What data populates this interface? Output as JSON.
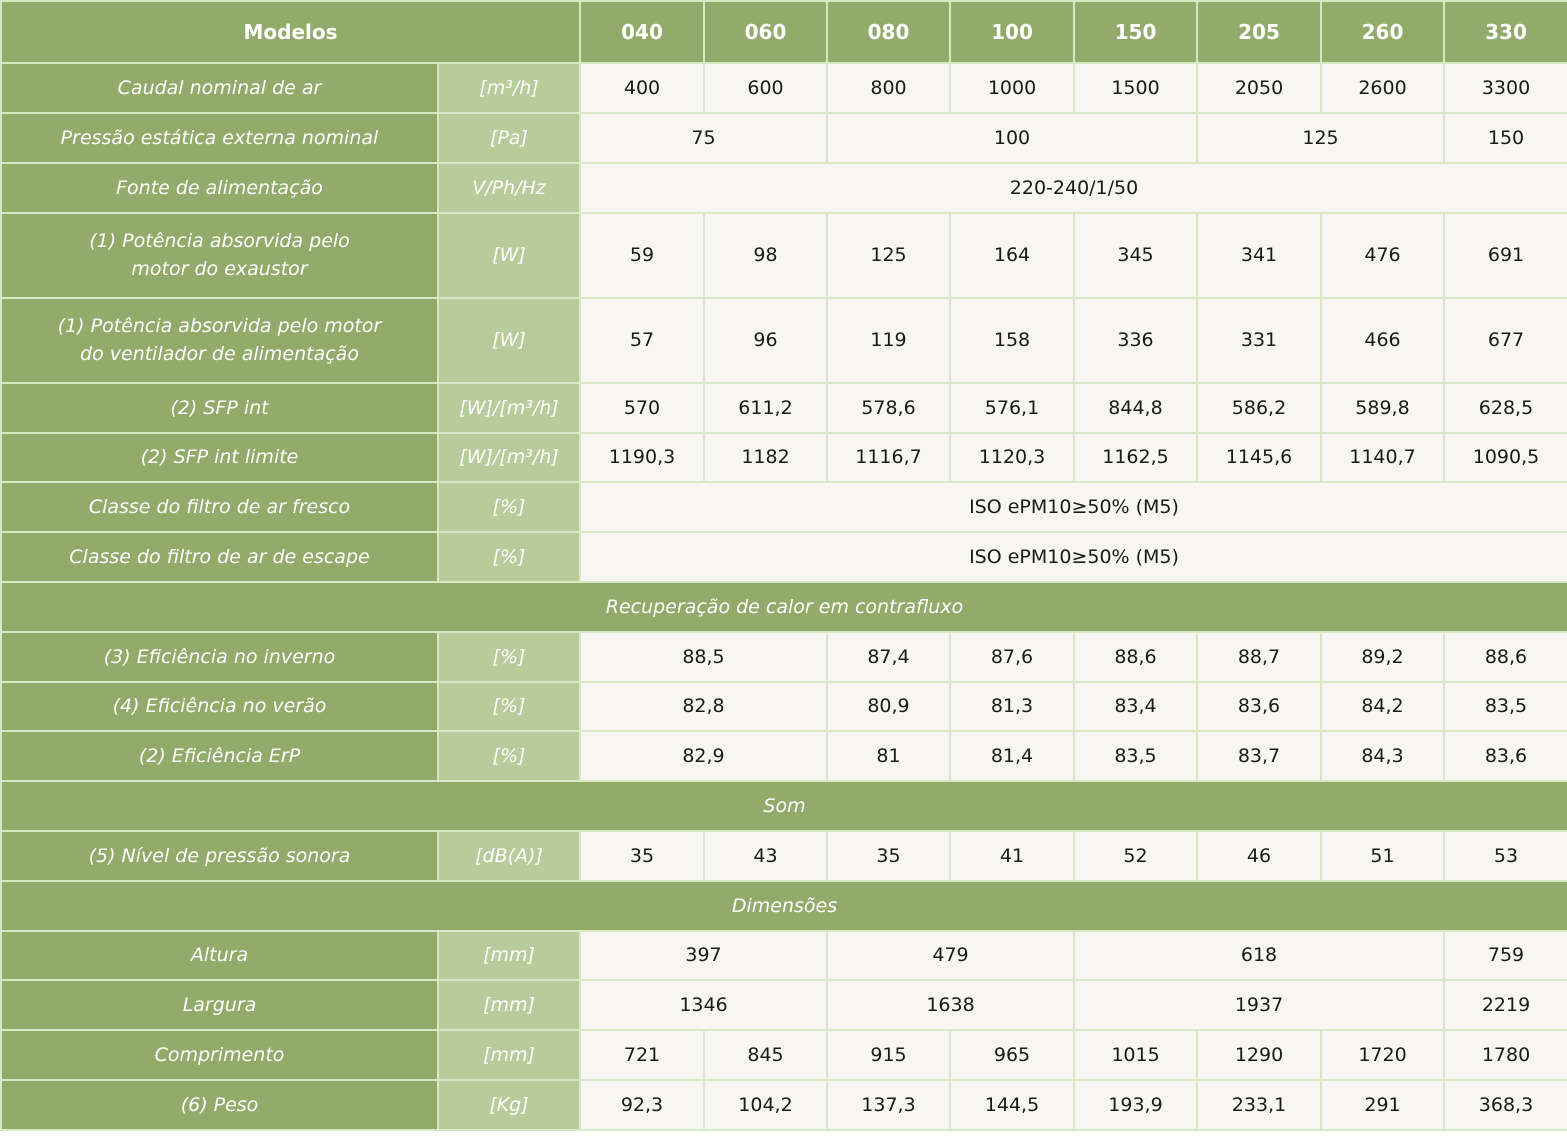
{
  "header": {
    "title": "Modelos",
    "models": [
      "040",
      "060",
      "080",
      "100",
      "150",
      "205",
      "260",
      "330"
    ]
  },
  "rows": {
    "caudal": {
      "label": "Caudal nominal de ar",
      "unit": "[m³/h]",
      "values": [
        "400",
        "600",
        "800",
        "1000",
        "1500",
        "2050",
        "2600",
        "3300"
      ]
    },
    "pressao": {
      "label": "Pressão estática externa nominal",
      "unit": "[Pa]",
      "values": [
        "75",
        "100",
        "125",
        "150"
      ]
    },
    "fonte": {
      "label": "Fonte de alimentação",
      "unit": "V/Ph/Hz",
      "value": "220-240/1/50"
    },
    "pot_exaustor": {
      "label_line1": "(1) Potência absorvida pelo",
      "label_line2": "motor do exaustor",
      "unit": "[W]",
      "values": [
        "59",
        "98",
        "125",
        "164",
        "345",
        "341",
        "476",
        "691"
      ]
    },
    "pot_ventilador": {
      "label_line1": "(1) Potência absorvida pelo motor",
      "label_line2": "do ventilador de alimentação",
      "unit": "[W]",
      "values": [
        "57",
        "96",
        "119",
        "158",
        "336",
        "331",
        "466",
        "677"
      ]
    },
    "sfp_int": {
      "label": "(2) SFP int",
      "unit": "[W]/[m³/h]",
      "values": [
        "570",
        "611,2",
        "578,6",
        "576,1",
        "844,8",
        "586,2",
        "589,8",
        "628,5"
      ]
    },
    "sfp_limite": {
      "label": "(2) SFP int limite",
      "unit": "[W]/[m³/h]",
      "values": [
        "1190,3",
        "1182",
        "1116,7",
        "1120,3",
        "1162,5",
        "1145,6",
        "1140,7",
        "1090,5"
      ]
    },
    "filtro_fresco": {
      "label": "Classe do filtro de ar fresco",
      "unit": "[%]",
      "value": "ISO ePM10≥50% (M5)"
    },
    "filtro_escape": {
      "label": "Classe do filtro de ar de escape",
      "unit": "[%]",
      "value": "ISO ePM10≥50% (M5)"
    },
    "ef_inverno": {
      "label": "(3) Eficiência no inverno",
      "unit": "[%]",
      "values": [
        "88,5",
        "87,4",
        "87,6",
        "88,6",
        "88,7",
        "89,2",
        "88,6"
      ]
    },
    "ef_verao": {
      "label": "(4) Eficiência no verão",
      "unit": "[%]",
      "values": [
        "82,8",
        "80,9",
        "81,3",
        "83,4",
        "83,6",
        "84,2",
        "83,5"
      ]
    },
    "ef_erp": {
      "label": "(2) Eficiência ErP",
      "unit": "[%]",
      "values": [
        "82,9",
        "81",
        "81,4",
        "83,5",
        "83,7",
        "84,3",
        "83,6"
      ]
    },
    "nivel_sonoro": {
      "label": "(5) Nível de pressão sonora",
      "unit": "[dB(A)]",
      "values": [
        "35",
        "43",
        "35",
        "41",
        "52",
        "46",
        "51",
        "53"
      ]
    },
    "altura": {
      "label": "Altura",
      "unit": "[mm]",
      "values": [
        "397",
        "479",
        "618",
        "759"
      ]
    },
    "largura": {
      "label": "Largura",
      "unit": "[mm]",
      "values": [
        "1346",
        "1638",
        "1937",
        "2219"
      ]
    },
    "comprimento": {
      "label": "Comprimento",
      "unit": "[mm]",
      "values": [
        "721",
        "845",
        "915",
        "965",
        "1015",
        "1290",
        "1720",
        "1780"
      ]
    },
    "peso": {
      "label": "(6) Peso",
      "unit": "[Kg]",
      "values": [
        "92,3",
        "104,2",
        "137,3",
        "144,5",
        "193,9",
        "233,1",
        "291",
        "368,3"
      ]
    }
  },
  "sections": {
    "recuperacao": "Recuperação de calor em contrafluxo",
    "som": "Som",
    "dimensoes": "Dimensões"
  },
  "colors": {
    "header_green": "#92ab6b",
    "unit_green": "#b8cb9b",
    "value_bg": "#f7f6f3",
    "grid_line": "#d9e8c4"
  }
}
